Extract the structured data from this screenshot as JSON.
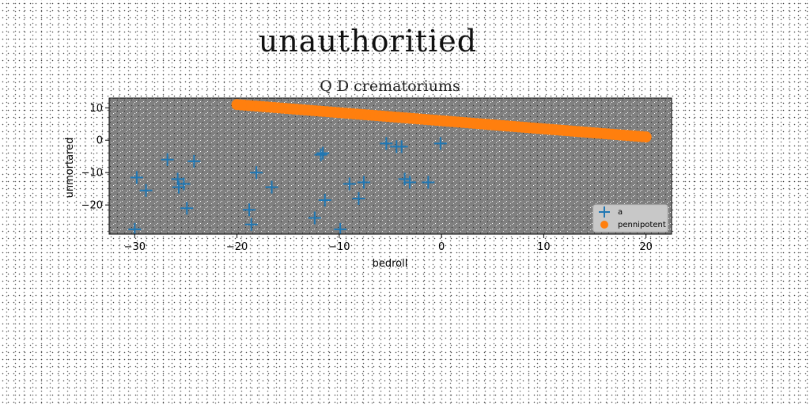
{
  "suptitle": "unauthoritied",
  "chart_data": {
    "type": "scatter",
    "title": "Q D crematoriums",
    "xlabel": "bedroll",
    "ylabel": "unmortared",
    "xlim": [
      -32.5,
      22.5
    ],
    "ylim": [
      -29,
      13
    ],
    "xticks": [
      -30,
      -20,
      -10,
      0,
      10,
      20
    ],
    "yticks": [
      -20,
      -10,
      0,
      10
    ],
    "grid": false,
    "legend_position": "lower-right",
    "background_color": "#808080",
    "series": [
      {
        "name": "a",
        "marker": "plus",
        "color": "#1f77b4",
        "x": [
          -29.8,
          -28.9,
          -30.0,
          -26.8,
          -25.8,
          -25.7,
          -25.2,
          -24.9,
          -24.2,
          -18.8,
          -18.6,
          -18.1,
          -16.6,
          -12.4,
          -11.8,
          -11.6,
          -11.4,
          -9.9,
          -9.0,
          -8.1,
          -7.6,
          -5.4,
          -4.4,
          -3.9,
          -3.6,
          -3.1,
          -1.3,
          -0.1
        ],
        "y": [
          -11.5,
          -15.5,
          -27.5,
          -6.0,
          -12.0,
          -14.5,
          -13.5,
          -21.0,
          -6.5,
          -21.5,
          -26.0,
          -10.0,
          -14.5,
          -24.0,
          -4.5,
          -4.0,
          -18.5,
          -27.5,
          -13.5,
          -18.0,
          -13.0,
          -1.0,
          -2.0,
          -2.0,
          -12.0,
          -13.0,
          -13.0,
          -1.0
        ]
      },
      {
        "name": "pennipotent",
        "marker": "circle",
        "color": "#ff7f0e",
        "x_start": -20,
        "x_end": 20,
        "y_start": 11,
        "y_end": 1,
        "point_count": 110
      }
    ]
  }
}
